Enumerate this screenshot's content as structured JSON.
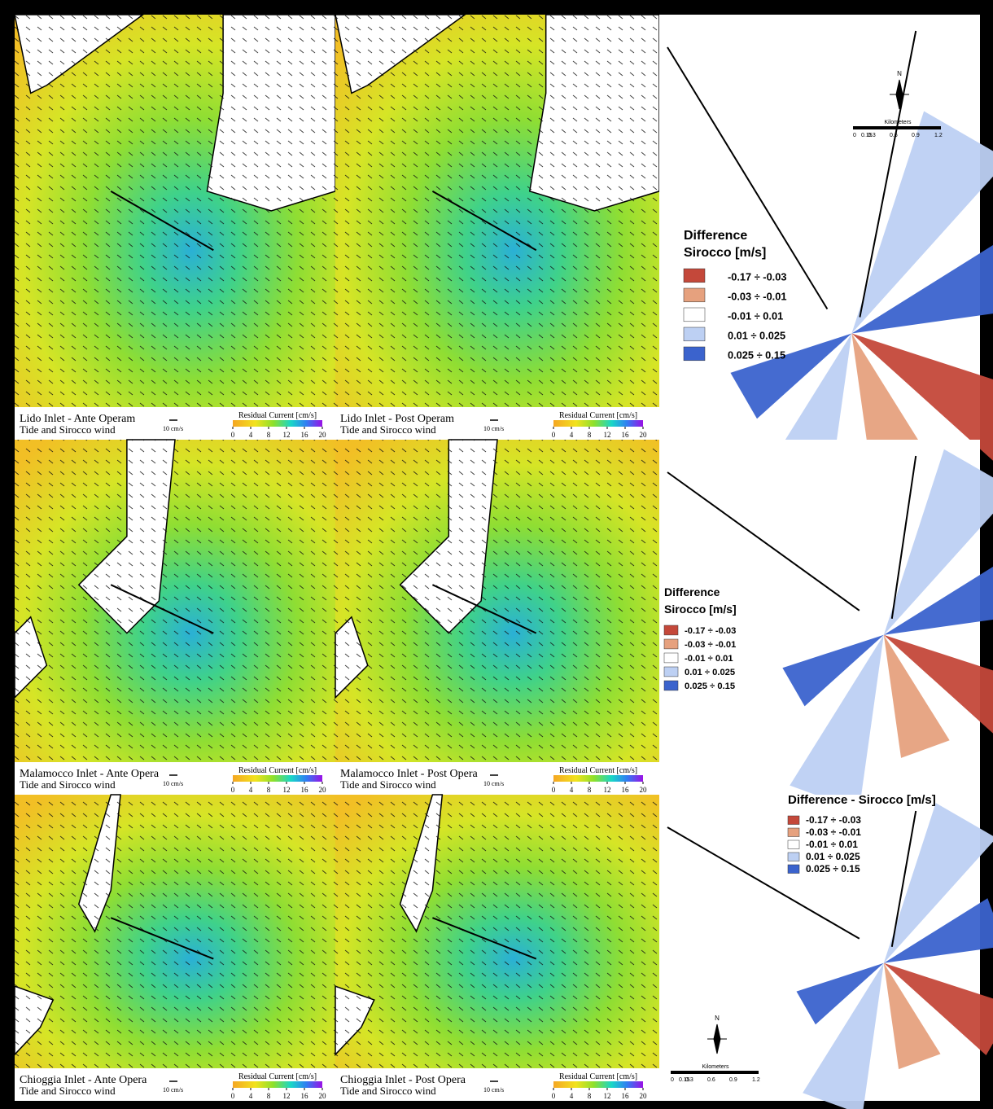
{
  "rows": [
    {
      "panels": [
        {
          "title": "Lido Inlet - Ante Operam",
          "subtitle": "Tide and Sirocco wind",
          "arrow_label": "10 cm/s",
          "colorbar_title": "Residual Current [cm/s]"
        },
        {
          "title": "Lido Inlet - Post Operam",
          "subtitle": "Tide and Sirocco wind",
          "arrow_label": "10 cm/s",
          "colorbar_title": "Residual Current [cm/s]"
        }
      ],
      "difference": {
        "title": [
          "Difference",
          "Sirocco [m/s]"
        ]
      }
    },
    {
      "panels": [
        {
          "title": "Malamocco Inlet - Ante Opera",
          "subtitle": "Tide and Sirocco wind",
          "arrow_label": "10 cm/s",
          "colorbar_title": "Residual Current [cm/s]"
        },
        {
          "title": "Malamocco Inlet - Post Opera",
          "subtitle": "Tide and Sirocco wind",
          "arrow_label": "10 cm/s",
          "colorbar_title": "Residual Current [cm/s]"
        }
      ],
      "difference": {
        "title": [
          "Difference",
          "Sirocco [m/s]"
        ]
      }
    },
    {
      "panels": [
        {
          "title": "Chioggia Inlet - Ante Opera",
          "subtitle": "Tide and Sirocco wind",
          "arrow_label": "10 cm/s",
          "colorbar_title": "Residual Current [cm/s]"
        },
        {
          "title": "Chioggia Inlet - Post Opera",
          "subtitle": "Tide and Sirocco wind",
          "arrow_label": "10 cm/s",
          "colorbar_title": "Residual Current [cm/s]"
        }
      ],
      "difference": {
        "title": [
          "Difference - Sirocco [m/s]"
        ]
      }
    }
  ],
  "colorbar_ticks": [
    0,
    4,
    8,
    12,
    16,
    20
  ],
  "legend_classes": [
    {
      "label": "-0.17 ÷ -0.03",
      "color": "#c4483a"
    },
    {
      "label": "-0.03 ÷ -0.01",
      "color": "#e6a17e"
    },
    {
      "label": "-0.01 ÷ 0.01",
      "color": "#ffffff"
    },
    {
      "label": "0.01 ÷ 0.025",
      "color": "#bdd0f3"
    },
    {
      "label": "0.025 ÷ 0.15",
      "color": "#3b63cd"
    }
  ],
  "scale_bar": {
    "north": "N",
    "unit": "Kilometers",
    "labels": [
      "0",
      "0.15",
      "0.3",
      "0.6",
      "0.9",
      "1.2"
    ]
  }
}
